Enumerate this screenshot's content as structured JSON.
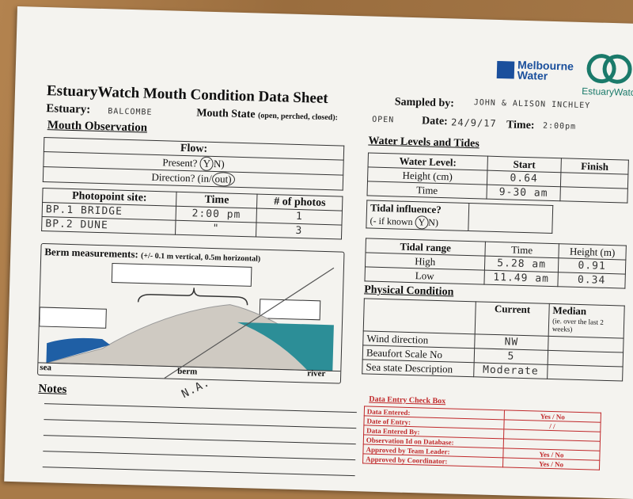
{
  "header": {
    "title": "EstuaryWatch Mouth Condition Data Sheet",
    "sampled_by_label": "Sampled by:",
    "sampled_by_value": "JOHN & ALISON INCHLEY"
  },
  "logos": {
    "mw_line1": "Melbourne",
    "mw_line2": "Water",
    "ew_text": "EstuaryWatch",
    "mw_color": "#1a4f9c",
    "ew_color": "#1a7a6a"
  },
  "row2": {
    "estuary_label": "Estuary:",
    "estuary_value": "BALCOMBE",
    "mouth_state_label": "Mouth State",
    "mouth_state_hint": "(open, perched, closed):",
    "mouth_state_value": "OPEN",
    "date_label": "Date:",
    "date_value": "24/9/17",
    "time_label": "Time:",
    "time_value": "2:00pm"
  },
  "mouth_observation": {
    "heading": "Mouth Observation",
    "flow_label": "Flow:",
    "present_label": "Present?",
    "present_y": "Y",
    "present_n": "N)",
    "direction_label": "Direction? (in/",
    "direction_out": "out)"
  },
  "photopoint": {
    "headers": [
      "Photopoint site:",
      "Time",
      "# of photos"
    ],
    "rows": [
      [
        "BP.1  BRIDGE",
        "2:00 pm",
        "1"
      ],
      [
        "BP.2  DUNE",
        "\"",
        "3"
      ]
    ]
  },
  "berm": {
    "title": "Berm measurements:",
    "hint": "(+/- 0.1 m vertical, 0.5m horizontal)",
    "sea": "sea",
    "berm": "berm",
    "river": "river",
    "na": "N.A."
  },
  "notes": {
    "heading": "Notes"
  },
  "water_levels": {
    "heading": "Water Levels and Tides",
    "headers": [
      "Water Level:",
      "Start",
      "Finish"
    ],
    "rows": [
      [
        "Height (cm)",
        "0.64",
        ""
      ],
      [
        "Time",
        "9-30 am",
        ""
      ]
    ]
  },
  "tidal_influence": {
    "label": "Tidal influence?",
    "hint": "(- if known",
    "y": "Y",
    "n": "N)"
  },
  "tidal_range": {
    "headers": [
      "Tidal range",
      "Time",
      "Height (m)"
    ],
    "rows": [
      [
        "High",
        "5.28 am",
        "0.91"
      ],
      [
        "Low",
        "11.49 am",
        "0.34"
      ]
    ]
  },
  "physical": {
    "heading": "Physical Condition",
    "current": "Current",
    "median": "Median",
    "median_hint": "(ie. over the last 2 weeks)",
    "rows": [
      [
        "Wind direction",
        "NW"
      ],
      [
        "Beaufort Scale No",
        "5"
      ],
      [
        "Sea state Description",
        "Moderate"
      ]
    ]
  },
  "check_box": {
    "title": "Data Entry Check Box",
    "rows": [
      [
        "Data Entered:",
        "Yes / No"
      ],
      [
        "Date of Entry:",
        "/     /"
      ],
      [
        "Data Entered By:",
        ""
      ],
      [
        "Observation Id on Database:",
        ""
      ],
      [
        "Approved by Team Leader:",
        "Yes / No"
      ],
      [
        "Approved by Coordinator:",
        "Yes / No"
      ]
    ]
  }
}
